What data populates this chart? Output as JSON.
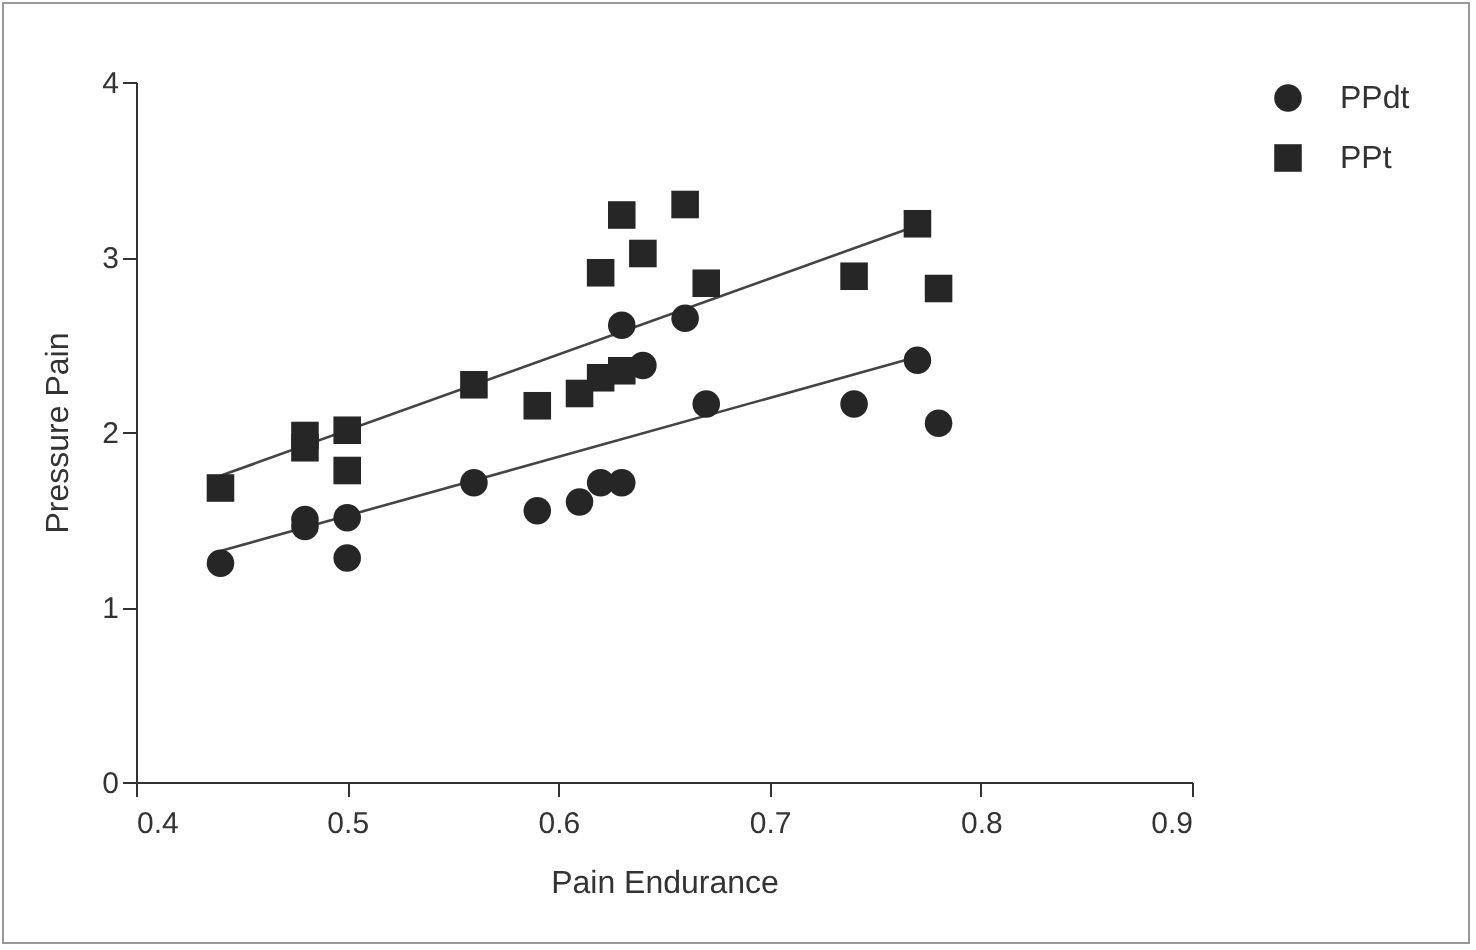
{
  "chart_data": {
    "type": "scatter",
    "xlabel": "Pain Endurance",
    "ylabel": "Pressure Pain",
    "xlim": [
      0.4,
      0.9
    ],
    "xticks": [
      0.4,
      0.5,
      0.6,
      0.7,
      0.8,
      0.9
    ],
    "ylim": [
      0,
      4
    ],
    "yticks": [
      0,
      1,
      2,
      3,
      4
    ],
    "grid": false,
    "legend": "top right",
    "series": [
      {
        "name": "PPdt",
        "marker": "circle",
        "color": "#262626",
        "x": [
          0.44,
          0.48,
          0.48,
          0.5,
          0.5,
          0.56,
          0.59,
          0.61,
          0.62,
          0.63,
          0.63,
          0.64,
          0.66,
          0.67,
          0.74,
          0.77,
          0.78
        ],
        "values": [
          1.25,
          1.46,
          1.5,
          1.51,
          1.28,
          1.71,
          1.55,
          1.6,
          1.71,
          1.71,
          2.61,
          2.38,
          2.65,
          2.16,
          2.16,
          2.41,
          2.05
        ]
      },
      {
        "name": "PPt",
        "marker": "square",
        "color": "#262626",
        "x": [
          0.44,
          0.48,
          0.48,
          0.5,
          0.5,
          0.56,
          0.59,
          0.61,
          0.62,
          0.63,
          0.62,
          0.63,
          0.64,
          0.66,
          0.67,
          0.74,
          0.77,
          0.78
        ],
        "values": [
          1.68,
          1.91,
          1.98,
          2.01,
          1.78,
          2.27,
          2.15,
          2.22,
          2.31,
          2.35,
          2.91,
          3.24,
          3.02,
          3.3,
          2.85,
          2.89,
          3.19,
          2.82
        ]
      },
      {
        "type": "line",
        "color": "#444444",
        "x": [
          0.44,
          0.77
        ],
        "values": [
          1.32,
          2.43
        ]
      },
      {
        "type": "line",
        "color": "#444444",
        "x": [
          0.44,
          0.77
        ],
        "values": [
          1.75,
          3.18
        ]
      }
    ]
  }
}
